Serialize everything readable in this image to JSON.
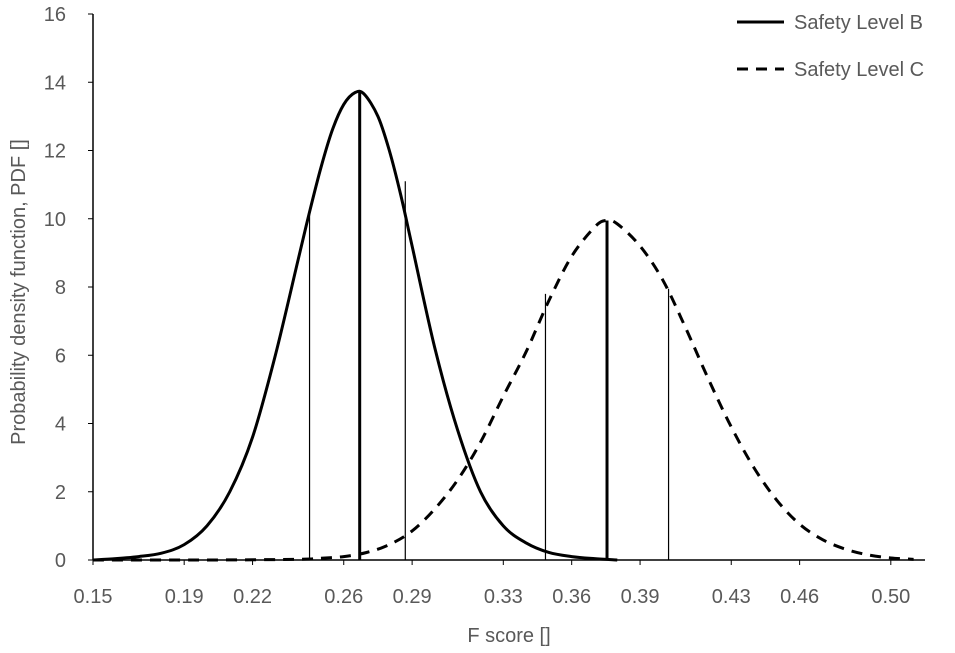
{
  "chart_data": {
    "type": "line",
    "xlabel": "F score []",
    "ylabel": "Probability density function, PDF []",
    "xlim": [
      0.15,
      0.515
    ],
    "ylim": [
      0,
      16
    ],
    "x_ticks": [
      0.15,
      0.19,
      0.22,
      0.26,
      0.29,
      0.33,
      0.36,
      0.39,
      0.43,
      0.46,
      0.5
    ],
    "x_tick_labels": [
      "0.15",
      "0.19",
      "0.22",
      "0.26",
      "0.29",
      "0.33",
      "0.36",
      "0.39",
      "0.43",
      "0.46",
      "0.50"
    ],
    "y_ticks": [
      0,
      2,
      4,
      6,
      8,
      10,
      12,
      14,
      16
    ],
    "y_tick_labels": [
      "0",
      "2",
      "4",
      "6",
      "8",
      "10",
      "12",
      "14",
      "16"
    ],
    "grid": false,
    "legend_position": "top-right",
    "series": [
      {
        "name": "Safety Level B",
        "style": "solid",
        "color": "#000000",
        "x": [
          0.15,
          0.16,
          0.17,
          0.18,
          0.19,
          0.2,
          0.21,
          0.22,
          0.23,
          0.24,
          0.245,
          0.25,
          0.255,
          0.26,
          0.265,
          0.269,
          0.275,
          0.28,
          0.285,
          0.29,
          0.3,
          0.31,
          0.32,
          0.33,
          0.34,
          0.35,
          0.36,
          0.37,
          0.38
        ],
        "y": [
          0.0,
          0.04,
          0.1,
          0.2,
          0.45,
          1.0,
          2.0,
          3.6,
          6.0,
          8.8,
          10.2,
          11.5,
          12.6,
          13.35,
          13.7,
          13.65,
          13.0,
          12.0,
          10.7,
          9.2,
          6.2,
          3.8,
          2.0,
          1.0,
          0.5,
          0.22,
          0.1,
          0.04,
          0.0
        ],
        "markers": [
          {
            "x": 0.245,
            "y": 10.2,
            "weight": "thin"
          },
          {
            "x": 0.267,
            "y": 13.7,
            "weight": "bold"
          },
          {
            "x": 0.287,
            "y": 11.1,
            "weight": "thin"
          }
        ]
      },
      {
        "name": "Safety Level C",
        "style": "dashed",
        "color": "#000000",
        "x": [
          0.15,
          0.2,
          0.24,
          0.25,
          0.26,
          0.27,
          0.28,
          0.29,
          0.3,
          0.31,
          0.32,
          0.33,
          0.34,
          0.35,
          0.36,
          0.37,
          0.375,
          0.38,
          0.39,
          0.4,
          0.41,
          0.42,
          0.43,
          0.44,
          0.45,
          0.46,
          0.47,
          0.48,
          0.49,
          0.5,
          0.51
        ],
        "y": [
          0.0,
          0.0,
          0.02,
          0.05,
          0.1,
          0.22,
          0.45,
          0.85,
          1.5,
          2.35,
          3.45,
          4.8,
          6.1,
          7.6,
          8.9,
          9.75,
          9.95,
          9.85,
          9.2,
          8.2,
          6.8,
          5.3,
          3.9,
          2.7,
          1.75,
          1.05,
          0.6,
          0.32,
          0.15,
          0.06,
          0.02
        ],
        "markers": [
          {
            "x": 0.3485,
            "y": 7.8,
            "weight": "thin"
          },
          {
            "x": 0.3755,
            "y": 9.95,
            "weight": "bold"
          },
          {
            "x": 0.4025,
            "y": 7.95,
            "weight": "thin"
          }
        ]
      }
    ]
  }
}
